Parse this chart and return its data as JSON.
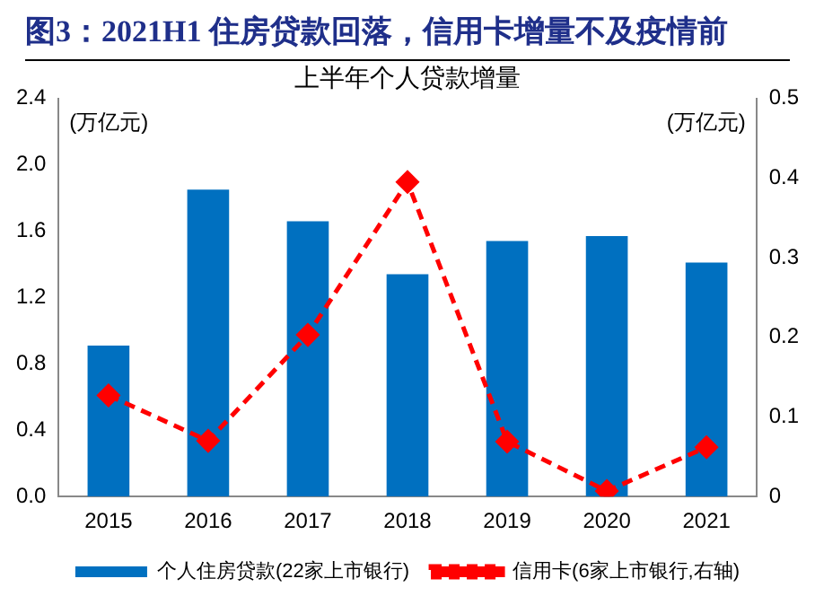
{
  "chart_data": {
    "type": "bar",
    "title": "图3：2021H1 住房贷款回落，信用卡增量不及疫情前",
    "subtitle": "上半年个人贷款增量",
    "ylabel": "(万亿元)",
    "y2label": "(万亿元)",
    "categories": [
      "2015",
      "2016",
      "2017",
      "2018",
      "2019",
      "2020",
      "2021"
    ],
    "series": [
      {
        "name": "个人住房贷款(22家上市银行)",
        "color": "#0070c0",
        "values": [
          0.91,
          1.85,
          1.66,
          1.34,
          1.54,
          1.57,
          1.41
        ]
      },
      {
        "name": "信用卡(6家上市银行,右轴)",
        "type": "line",
        "axis": "y2",
        "color": "#ff0000",
        "marker": "diamond",
        "line_style": "dashed",
        "values": [
          0.127,
          0.07,
          0.203,
          0.395,
          0.069,
          0.007,
          0.062
        ]
      }
    ],
    "ylim": [
      0,
      2.4
    ],
    "yticks": [
      {
        "value": 0,
        "label": "0.0"
      },
      {
        "value": 0.4,
        "label": "0.4"
      },
      {
        "value": 0.8,
        "label": "0.8"
      },
      {
        "value": 1.2,
        "label": "1.2"
      },
      {
        "value": 1.6,
        "label": "1.6"
      },
      {
        "value": 2,
        "label": "2.0"
      },
      {
        "value": 2.4,
        "label": "2.4"
      }
    ],
    "y2lim": [
      0,
      0.5
    ],
    "y2ticks": [
      0,
      0.1,
      0.2,
      0.3,
      0.4,
      0.5
    ],
    "grid": false,
    "legend": "bottom"
  }
}
